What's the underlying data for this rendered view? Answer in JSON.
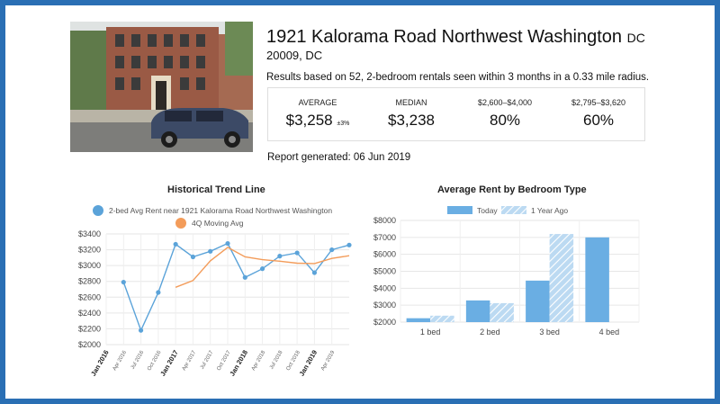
{
  "property": {
    "address": "1921 Kalorama Road Northwest Washington",
    "state": "DC",
    "zip_line": "20009, DC",
    "basis": "Results based on 52, 2-bedroom rentals seen within 3 months in a 0.33 mile radius.",
    "report": "Report generated: 06 Jun 2019"
  },
  "stats": [
    {
      "label": "AVERAGE",
      "value": "$3,258",
      "note": "±3%"
    },
    {
      "label": "MEDIAN",
      "value": "$3,238",
      "note": ""
    },
    {
      "label": "$2,600–$4,000",
      "value": "80%",
      "note": ""
    },
    {
      "label": "$2,795–$3,620",
      "value": "60%",
      "note": ""
    }
  ],
  "chart_data": [
    {
      "type": "line",
      "title": "Historical Trend Line",
      "x": [
        "Jan 2016",
        "Apr 2016",
        "Jul 2016",
        "Oct 2016",
        "Jan 2017",
        "Apr 2017",
        "Jul 2017",
        "Oct 2017",
        "Jan 2018",
        "Apr 2018",
        "Jul 2018",
        "Oct 2018",
        "Jan 2019",
        "Apr 2019",
        "Jun 2019"
      ],
      "series": [
        {
          "name": "2-bed Avg Rent near 1921 Kalorama Road Northwest Washington",
          "color": "#5ba3d9",
          "values": [
            null,
            2790,
            2180,
            2660,
            3270,
            3110,
            3180,
            3280,
            2850,
            2960,
            3120,
            3160,
            2910,
            3200,
            3260
          ]
        },
        {
          "name": "4Q Moving Avg",
          "color": "#f39c5a",
          "values": [
            null,
            null,
            null,
            null,
            2725,
            2810,
            3060,
            3230,
            3110,
            3075,
            3055,
            3030,
            3025,
            3090,
            3125
          ]
        }
      ],
      "yticks": [
        "$2000",
        "$2200",
        "$2400",
        "$2600",
        "$2800",
        "$3000",
        "$3200",
        "$3400"
      ],
      "ylim": [
        2000,
        3400
      ],
      "bold_ticks": [
        "Jan 2016",
        "Jan 2017",
        "Jan 2018",
        "Jan 2019"
      ],
      "grid": true,
      "legend": "top"
    },
    {
      "type": "bar",
      "title": "Average Rent by Bedroom Type",
      "categories": [
        "1 bed",
        "2 bed",
        "3 bed",
        "4 bed"
      ],
      "series": [
        {
          "name": "Today",
          "color": "#6aaee3",
          "values": [
            2230,
            3280,
            4450,
            7000
          ]
        },
        {
          "name": "1 Year Ago",
          "color": "#bcdaf2",
          "values": [
            2380,
            3120,
            7200,
            null
          ]
        }
      ],
      "yticks": [
        "$2000",
        "$3000",
        "$4000",
        "$5000",
        "$6000",
        "$7000",
        "$8000"
      ],
      "ylim": [
        2000,
        8000
      ],
      "grid": true,
      "legend": "top"
    }
  ]
}
